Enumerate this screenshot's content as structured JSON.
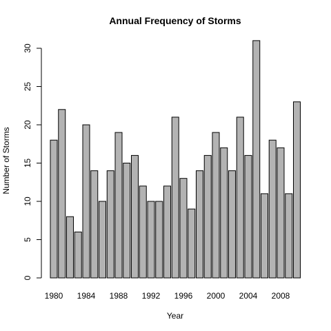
{
  "chart_data": {
    "type": "bar",
    "title": "Annual Frequency of Storms",
    "xlabel": "Year",
    "ylabel": "Number of Storms",
    "categories": [
      "1980",
      "1981",
      "1982",
      "1983",
      "1984",
      "1985",
      "1986",
      "1987",
      "1988",
      "1989",
      "1990",
      "1991",
      "1992",
      "1993",
      "1994",
      "1995",
      "1996",
      "1997",
      "1998",
      "1999",
      "2000",
      "2001",
      "2002",
      "2003",
      "2004",
      "2005",
      "2006",
      "2007",
      "2008",
      "2009",
      "2010"
    ],
    "values": [
      18,
      22,
      8,
      6,
      20,
      14,
      10,
      14,
      19,
      15,
      16,
      12,
      10,
      10,
      12,
      21,
      13,
      9,
      14,
      16,
      19,
      17,
      14,
      21,
      16,
      31,
      11,
      18,
      17,
      11,
      23
    ],
    "x_tick_labels": [
      "1980",
      "1984",
      "1988",
      "1992",
      "1996",
      "2000",
      "2004",
      "2008"
    ],
    "y_ticks": [
      0,
      5,
      10,
      15,
      20,
      25,
      30
    ],
    "ylim": [
      0,
      31
    ],
    "bar_color": "#b3b3b3",
    "grid": false,
    "legend": "none"
  }
}
